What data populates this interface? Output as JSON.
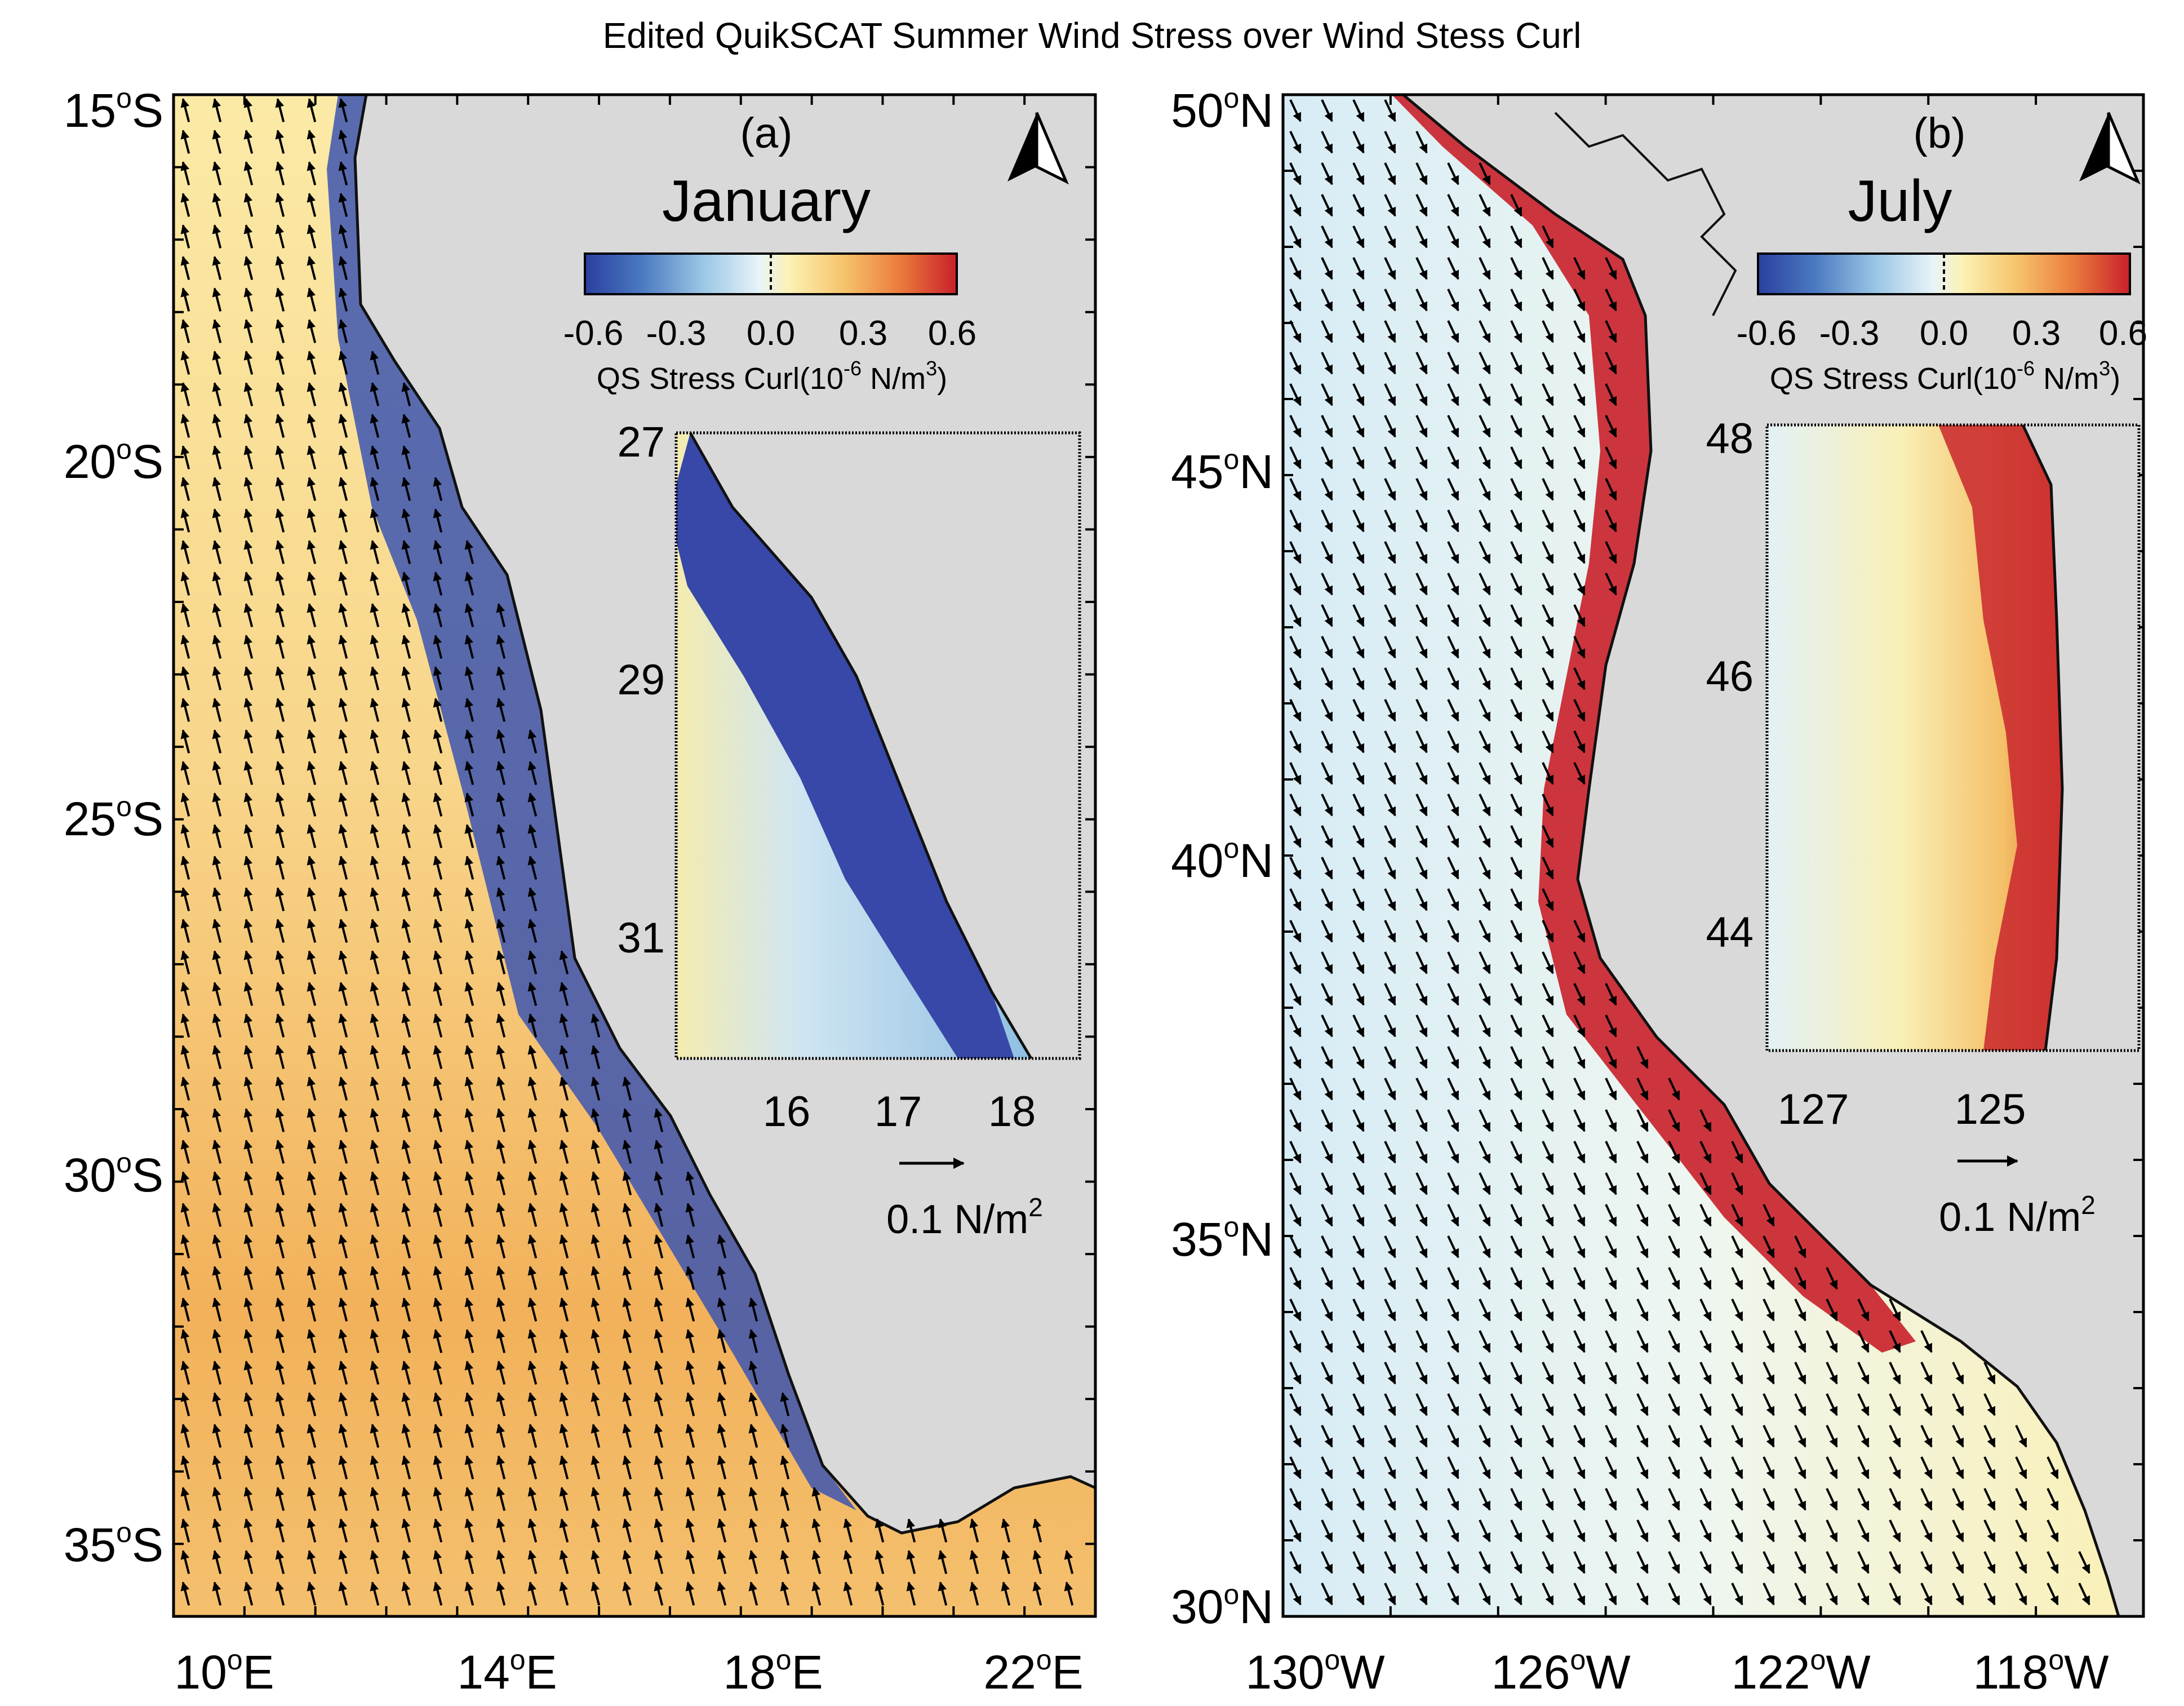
{
  "figure": {
    "title": "Edited QuikSCAT  Summer Wind Stress over Wind Stess Curl"
  },
  "colors": {
    "land": "#d9d9d9",
    "coastline": "#111111",
    "arrow": "#000000",
    "colormap": [
      "#2a3f9f",
      "#4a78c0",
      "#9cc7e6",
      "#e8f4f8",
      "#fbf2b4",
      "#f6c26a",
      "#ea7a3c",
      "#c8202a"
    ]
  },
  "panels": [
    {
      "id": "a",
      "panel_label": "(a)",
      "month": "January",
      "north_arrow_icon": "north-arrow-icon",
      "colorbar": {
        "ticks": [
          "-0.6",
          "-0.3",
          "0.0",
          "0.3",
          "0.6"
        ],
        "title": "QS Stress Curl(10",
        "title_exp": "-6",
        "title_unit": " N/m",
        "title_unit_exp": "3",
        "title_close": ")",
        "range": [
          -0.6,
          0.6
        ]
      },
      "lat_labels": [
        "15",
        "20",
        "25",
        "30",
        "35"
      ],
      "lat_hemi": "S",
      "lon_labels": [
        "10",
        "14",
        "18",
        "22"
      ],
      "lon_hemi": "E",
      "degree": "o",
      "inset": {
        "y_labels": [
          "27",
          "29",
          "31"
        ],
        "x_labels": [
          "16",
          "17",
          "18"
        ],
        "field": "negative-curl band along coast"
      },
      "scale": {
        "value": "0.1 N/m",
        "exp": "2"
      },
      "wind_direction": "toward north-west (equatorward)"
    },
    {
      "id": "b",
      "panel_label": "(b)",
      "month": "July",
      "north_arrow_icon": "north-arrow-icon",
      "colorbar": {
        "ticks": [
          "-0.6",
          "-0.3",
          "0.0",
          "0.3",
          "0.6"
        ],
        "title": "QS Stress Curl(10",
        "title_exp": "-6",
        "title_unit": " N/m",
        "title_unit_exp": "3",
        "title_close": ")",
        "range": [
          -0.6,
          0.6
        ]
      },
      "lat_labels": [
        "50",
        "45",
        "40",
        "35",
        "30"
      ],
      "lat_hemi": "N",
      "lon_labels": [
        "130",
        "126",
        "122",
        "118"
      ],
      "lon_hemi": "W",
      "degree": "o",
      "inset": {
        "y_labels": [
          "48",
          "46",
          "44"
        ],
        "x_labels": [
          "127",
          "125"
        ],
        "field": "positive-curl band along coast"
      },
      "scale": {
        "value": "0.1 N/m",
        "exp": "2"
      },
      "wind_direction": "toward south-east (equatorward)"
    }
  ]
}
